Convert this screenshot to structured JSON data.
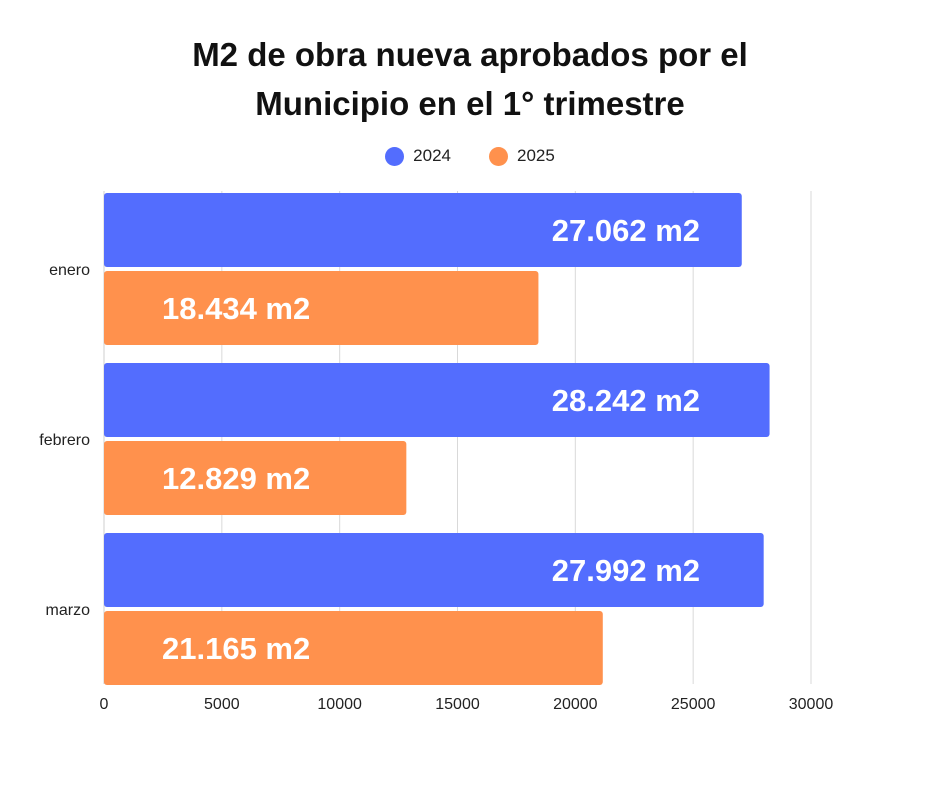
{
  "chart_data": {
    "type": "bar",
    "orientation": "horizontal",
    "title": "M2 de obra nueva aprobados por el Municipio en el 1° trimestre",
    "title_lines": [
      "M2 de obra nueva aprobados por el",
      "Municipio en el 1° trimestre"
    ],
    "categories": [
      "enero",
      "febrero",
      "marzo"
    ],
    "series": [
      {
        "name": "2024",
        "color": "#536DFE",
        "values": [
          27062,
          28242,
          27992
        ],
        "labels": [
          "27.062 m2",
          "28.242 m2",
          "27.992 m2"
        ]
      },
      {
        "name": "2025",
        "color": "#FF914D",
        "values": [
          18434,
          12829,
          21165
        ],
        "labels": [
          "18.434 m2",
          "12.829 m2",
          "21.165 m2"
        ]
      }
    ],
    "xlim": [
      0,
      30000
    ],
    "xticks": [
      0,
      5000,
      10000,
      15000,
      20000,
      25000,
      30000
    ],
    "xtick_labels": [
      "0",
      "5000",
      "10000",
      "15000",
      "20000",
      "25000",
      "30000"
    ],
    "grid": true,
    "legend_position": "top-center"
  }
}
